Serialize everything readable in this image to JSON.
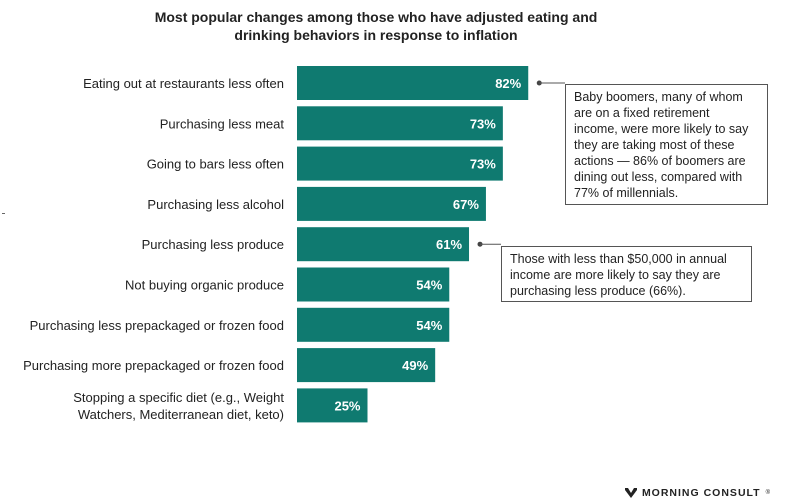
{
  "chart_data": {
    "type": "bar",
    "orientation": "horizontal",
    "title": "Most popular changes among those who have adjusted eating and drinking behaviors in response to inflation",
    "title_lines": [
      "Most popular changes among those who have adjusted eating and",
      "drinking behaviors in response to inflation"
    ],
    "categories": [
      "Eating out at restaurants less often",
      "Purchasing less meat",
      "Going to bars less often",
      "Purchasing less alcohol",
      "Purchasing less produce",
      "Not buying organic produce",
      "Purchasing less prepackaged or frozen food",
      "Purchasing more prepackaged or frozen food",
      "Stopping a specific diet (e.g., Weight Watchers, Mediterranean diet, keto)"
    ],
    "category_lines": [
      [
        "Eating out at restaurants less often"
      ],
      [
        "Purchasing less meat"
      ],
      [
        "Going to bars less often"
      ],
      [
        "Purchasing less alcohol"
      ],
      [
        "Purchasing less produce"
      ],
      [
        "Not buying organic produce"
      ],
      [
        "Purchasing less prepackaged or frozen food"
      ],
      [
        "Purchasing more prepackaged or frozen food"
      ],
      [
        "Stopping a specific diet (e.g., Weight",
        "Watchers, Mediterranean diet, keto)"
      ]
    ],
    "values": [
      82,
      73,
      73,
      67,
      61,
      54,
      54,
      49,
      25
    ],
    "value_labels": [
      "82%",
      "73%",
      "73%",
      "67%",
      "61%",
      "54%",
      "54%",
      "49%",
      "25%"
    ],
    "unit": "%",
    "bar_color": "#0f7a70",
    "label_color": "#ffffff",
    "grid": false,
    "annotations": [
      {
        "target_category": "Eating out at restaurants less often",
        "text": "Baby boomers, many of whom are on a fixed retirement income, were more likely to say they are taking most of these actions — 86% of boomers are dining out less, compared with 77% of millennials.",
        "lines": [
          "Baby boomers, many of whom",
          "are on a fixed retirement",
          "income, were more likely to say",
          "they are taking most of these",
          "actions — 86% of boomers are",
          "dining out less, compared with",
          "77% of millennials."
        ]
      },
      {
        "target_category": "Purchasing less produce",
        "text": "Those with less than $50,000 in annual income are more likely to say they are purchasing less produce (66%).",
        "lines": [
          "Those with less than $50,000 in annual",
          "income are more likely to say they are",
          "purchasing less produce (66%)."
        ]
      }
    ]
  },
  "brand": {
    "name": "MORNING CONSULT",
    "mark": "®"
  }
}
